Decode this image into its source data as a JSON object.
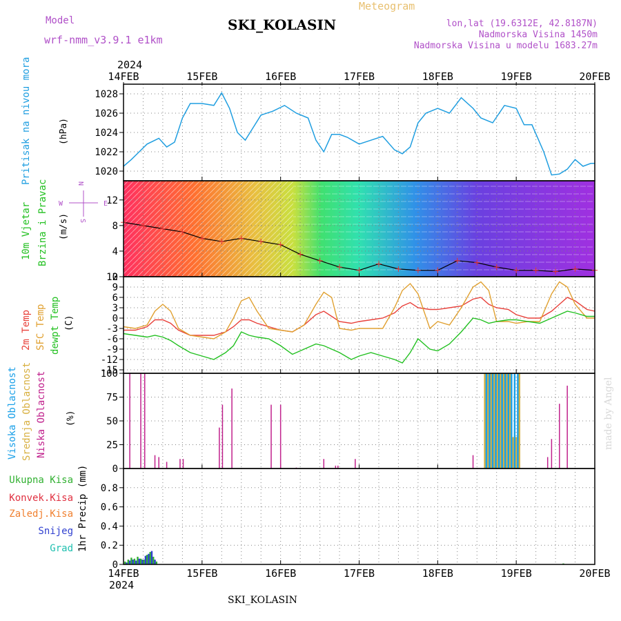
{
  "header": {
    "model_label": "Model",
    "model_name": "wrf-nmm_v3.9.1 e1km",
    "title": "SKI_KOLASIN",
    "meteogram": "Meteogram",
    "lonlat": "lon,lat (19.6312E, 42.8187N)",
    "elevation": "Nadmorska Visina 1450m",
    "model_elevation": "Nadmorska Visina u modelu 1683.27m",
    "bottom_title": "SKI_KOLASIN",
    "watermark": "made by Angel"
  },
  "colors": {
    "pressure": "#1f9ee0",
    "temp2m": "#e8403a",
    "sfc_temp": "#e0a030",
    "dewpt": "#22c020",
    "visoka": "#1aa0e8",
    "srednja": "#d8b040",
    "niska": "#c0208c",
    "precip_total": "#30b030",
    "precip_conv": "#e03040",
    "precip_frz": "#f08030",
    "precip_snow": "#3040d0",
    "precip_grad": "#20c0b0",
    "label_purple": "#b050c8",
    "meteogram_orange": "#e8c070"
  },
  "time_axis": {
    "year": "2024",
    "ticks": [
      "14FEB",
      "15FEB",
      "16FEB",
      "17FEB",
      "18FEB",
      "19FEB",
      "20FEB"
    ]
  },
  "chart_data": [
    {
      "type": "line",
      "id": "pressure",
      "ylabel": "Pritisak na nivou mora",
      "unit": "(hPa)",
      "ylim": [
        1019,
        1029
      ],
      "yticks": [
        1020,
        1022,
        1024,
        1026,
        1028
      ],
      "grid": true,
      "x_days": [
        0,
        0.1,
        0.2,
        0.3,
        0.45,
        0.55,
        0.65,
        0.75,
        0.85,
        1.0,
        1.15,
        1.25,
        1.35,
        1.45,
        1.55,
        1.65,
        1.75,
        1.9,
        2.05,
        2.2,
        2.35,
        2.45,
        2.55,
        2.65,
        2.75,
        2.85,
        3.0,
        3.15,
        3.3,
        3.45,
        3.55,
        3.65,
        3.75,
        3.85,
        4.0,
        4.15,
        4.3,
        4.45,
        4.55,
        4.7,
        4.85,
        5.0,
        5.1,
        5.2,
        5.35,
        5.45,
        5.55,
        5.65,
        5.75,
        5.85,
        5.95,
        6.0
      ],
      "series": [
        {
          "values": [
            1020.5,
            1021.2,
            1022.0,
            1022.8,
            1023.4,
            1022.5,
            1023.0,
            1025.5,
            1027.0,
            1027.0,
            1026.8,
            1028.1,
            1026.5,
            1024.0,
            1023.2,
            1024.5,
            1025.8,
            1026.2,
            1026.8,
            1026.0,
            1025.5,
            1023.2,
            1022.0,
            1023.8,
            1023.8,
            1023.5,
            1022.8,
            1023.2,
            1023.6,
            1022.2,
            1021.8,
            1022.5,
            1025.0,
            1026.0,
            1026.5,
            1026.0,
            1027.6,
            1026.5,
            1025.5,
            1025.0,
            1026.8,
            1026.5,
            1024.8,
            1024.8,
            1022.0,
            1019.6,
            1019.7,
            1020.2,
            1021.2,
            1020.5,
            1020.8,
            1020.8
          ]
        }
      ]
    },
    {
      "type": "scatter",
      "id": "wind",
      "ylabel": "10m Vjetar",
      "ylabel2": "Brzina i Pravac",
      "unit": "(m/s)",
      "compass": {
        "n": "N",
        "s": "S",
        "e": "E",
        "w": "W"
      },
      "ylim": [
        0,
        15
      ],
      "yticks": [
        0,
        4,
        8,
        12
      ],
      "grid": true,
      "x_days": [
        0,
        0.25,
        0.5,
        0.75,
        1.0,
        1.25,
        1.5,
        1.75,
        2.0,
        2.25,
        2.5,
        2.75,
        3.0,
        3.25,
        3.5,
        3.75,
        4.0,
        4.25,
        4.5,
        4.75,
        5.0,
        5.25,
        5.5,
        5.75,
        6.0
      ],
      "series": [
        {
          "name": "speed",
          "values": [
            8.5,
            8.0,
            7.5,
            7.0,
            6.0,
            5.5,
            6.0,
            5.5,
            5.0,
            3.5,
            2.5,
            1.5,
            1.0,
            2.0,
            1.2,
            1.0,
            1.0,
            2.5,
            2.2,
            1.5,
            1.0,
            1.0,
            0.8,
            1.2,
            1.0
          ]
        }
      ]
    },
    {
      "type": "line",
      "id": "temperature",
      "ylabels": [
        "2m Temp",
        "SFC Temp",
        "dewpt Temp"
      ],
      "unit": "(C)",
      "ylim": [
        -16,
        12
      ],
      "yticks": [
        12,
        9,
        6,
        3,
        0,
        -3,
        -6,
        -9,
        -12,
        -15
      ],
      "grid": true,
      "x_days": [
        0,
        0.15,
        0.3,
        0.4,
        0.5,
        0.6,
        0.7,
        0.85,
        1.0,
        1.15,
        1.3,
        1.4,
        1.5,
        1.6,
        1.7,
        1.85,
        2.0,
        2.15,
        2.3,
        2.45,
        2.55,
        2.65,
        2.75,
        2.9,
        3.0,
        3.15,
        3.3,
        3.45,
        3.55,
        3.65,
        3.75,
        3.9,
        4.0,
        4.15,
        4.3,
        4.45,
        4.55,
        4.65,
        4.75,
        4.9,
        5.0,
        5.15,
        5.3,
        5.45,
        5.55,
        5.65,
        5.75,
        5.9,
        6.0
      ],
      "series": [
        {
          "name": "2m Temp",
          "values": [
            -3.5,
            -3.5,
            -2.5,
            -0.5,
            -0.5,
            -1.5,
            -3.5,
            -5,
            -5,
            -5,
            -4,
            -2.5,
            -0.5,
            -0.5,
            -1.5,
            -2.5,
            -3.5,
            -4,
            -2,
            1,
            2,
            0.5,
            -1,
            -1.5,
            -1,
            -0.5,
            0,
            1.5,
            3.5,
            4.5,
            3,
            2.5,
            2.5,
            3,
            3.5,
            5.5,
            6,
            4,
            3,
            2.5,
            1,
            0,
            0,
            2,
            4,
            6,
            5,
            2.5,
            2
          ]
        },
        {
          "name": "SFC Temp",
          "values": [
            -2.5,
            -3,
            -2,
            2,
            4,
            2,
            -3,
            -5,
            -5.5,
            -6,
            -4,
            0,
            5,
            6,
            2,
            -3,
            -3.5,
            -4,
            -2,
            4,
            7.5,
            6,
            -3,
            -3.5,
            -3,
            -3,
            -3,
            3,
            8,
            10,
            7,
            -3,
            -1,
            -2,
            3,
            9,
            10.5,
            8,
            -1,
            -1,
            -1.5,
            -1,
            -1,
            7,
            10.5,
            9,
            4,
            0,
            0
          ]
        },
        {
          "name": "dewpt Temp",
          "values": [
            -4.5,
            -5,
            -5.5,
            -5,
            -5.5,
            -6.5,
            -8,
            -10,
            -11,
            -12,
            -10,
            -8,
            -4,
            -5,
            -5.5,
            -6,
            -8,
            -10.5,
            -9,
            -7.5,
            -8,
            -9,
            -10,
            -12,
            -11,
            -10,
            -11,
            -12,
            -13,
            -10,
            -6,
            -9,
            -9.5,
            -7.5,
            -4,
            0,
            -0.5,
            -1.5,
            -1,
            -0.5,
            -0.5,
            -1,
            -1.5,
            0,
            1,
            2,
            1.5,
            0.5,
            0.5
          ]
        }
      ]
    },
    {
      "type": "bar",
      "id": "cloud",
      "ylabels": [
        "Visoka Oblacnost",
        "Srednja Oblacnost",
        "Niska Oblacnost"
      ],
      "unit": "(%)",
      "ylim": [
        0,
        100
      ],
      "yticks": [
        0,
        25,
        50,
        75,
        100
      ],
      "grid": true,
      "series": [
        {
          "name": "Niska Oblacnost",
          "x_days": [
            0.08,
            0.22,
            0.27,
            0.4,
            0.45,
            0.55,
            0.72,
            0.76,
            1.22,
            1.26,
            1.38,
            1.88,
            2.0,
            2.2,
            2.55,
            2.7,
            2.73,
            2.95,
            4.45,
            5.4,
            5.45,
            5.55,
            5.65
          ],
          "values": [
            100,
            100,
            100,
            14,
            12,
            7,
            10,
            10,
            43,
            67,
            84,
            67,
            67,
            1,
            10,
            3,
            3,
            10,
            14,
            12,
            31,
            68,
            87
          ]
        },
        {
          "name": "Srednja Oblacnost",
          "x_days": [
            4.6,
            4.64,
            4.68,
            4.72,
            4.76,
            4.8,
            4.84,
            4.88,
            4.92,
            4.96,
            5.0,
            5.04
          ],
          "values": [
            100,
            100,
            100,
            100,
            100,
            100,
            100,
            100,
            100,
            33,
            33,
            100
          ]
        },
        {
          "name": "Visoka Oblacnost",
          "x_days": [
            4.62,
            4.66,
            4.7,
            4.74,
            4.78,
            4.82,
            4.86,
            4.9,
            4.94,
            4.98,
            5.02
          ],
          "values": [
            100,
            100,
            100,
            100,
            100,
            100,
            100,
            100,
            100,
            100,
            100
          ]
        }
      ]
    },
    {
      "type": "bar",
      "id": "precip",
      "legend": [
        "Ukupna Kisa",
        "Konvek.Kisa",
        "Zaledj.Kisa",
        "Snijeg",
        "Grad"
      ],
      "ylabel": "1hr Precip (mm)",
      "ylim": [
        0,
        1.0
      ],
      "yticks": [
        0,
        0.2,
        0.4,
        0.6,
        0.8
      ],
      "grid": true,
      "series": [
        {
          "name": "Ukupna Kisa",
          "x_days": [
            0.02,
            0.06,
            0.1,
            0.14,
            0.18,
            0.22,
            0.26,
            0.3,
            0.34,
            0.38,
            0.42,
            5.6
          ],
          "values": [
            0.03,
            0.05,
            0.07,
            0.06,
            0.08,
            0.06,
            0.05,
            0.1,
            0.13,
            0.08,
            0.03,
            0.01
          ]
        },
        {
          "name": "Snijeg",
          "x_days": [
            0.04,
            0.08,
            0.12,
            0.16,
            0.2,
            0.24,
            0.28,
            0.32,
            0.36,
            0.4
          ],
          "values": [
            0.02,
            0.04,
            0.05,
            0.04,
            0.06,
            0.05,
            0.09,
            0.11,
            0.14,
            0.05
          ]
        }
      ]
    }
  ]
}
